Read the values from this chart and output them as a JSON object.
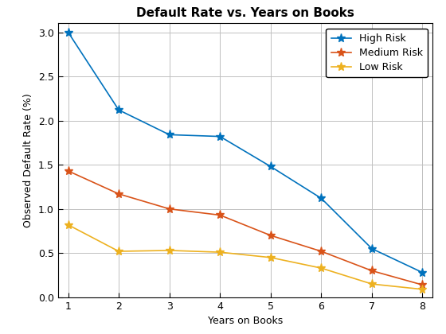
{
  "title": "Default Rate vs. Years on Books",
  "xlabel": "Years on Books",
  "ylabel": "Observed Default Rate (%)",
  "x": [
    1,
    2,
    3,
    4,
    5,
    6,
    7,
    8
  ],
  "high_risk": [
    3.0,
    2.12,
    1.84,
    1.82,
    1.48,
    1.12,
    0.55,
    0.28
  ],
  "medium_risk": [
    1.43,
    1.17,
    1.0,
    0.93,
    0.7,
    0.52,
    0.3,
    0.14
  ],
  "low_risk": [
    0.82,
    0.52,
    0.53,
    0.51,
    0.45,
    0.33,
    0.15,
    0.09
  ],
  "high_color": "#0072BD",
  "medium_color": "#D95319",
  "low_color": "#EDB120",
  "ylim": [
    0,
    3.1
  ],
  "xlim": [
    0.8,
    8.2
  ],
  "legend_labels": [
    "High Risk",
    "Medium Risk",
    "Low Risk"
  ],
  "background_color": "#ffffff",
  "grid_color": "#c0c0c0",
  "title_fontsize": 11,
  "label_fontsize": 9,
  "tick_fontsize": 9,
  "legend_fontsize": 9,
  "linewidth": 1.2,
  "marker": "*",
  "markersize": 8
}
